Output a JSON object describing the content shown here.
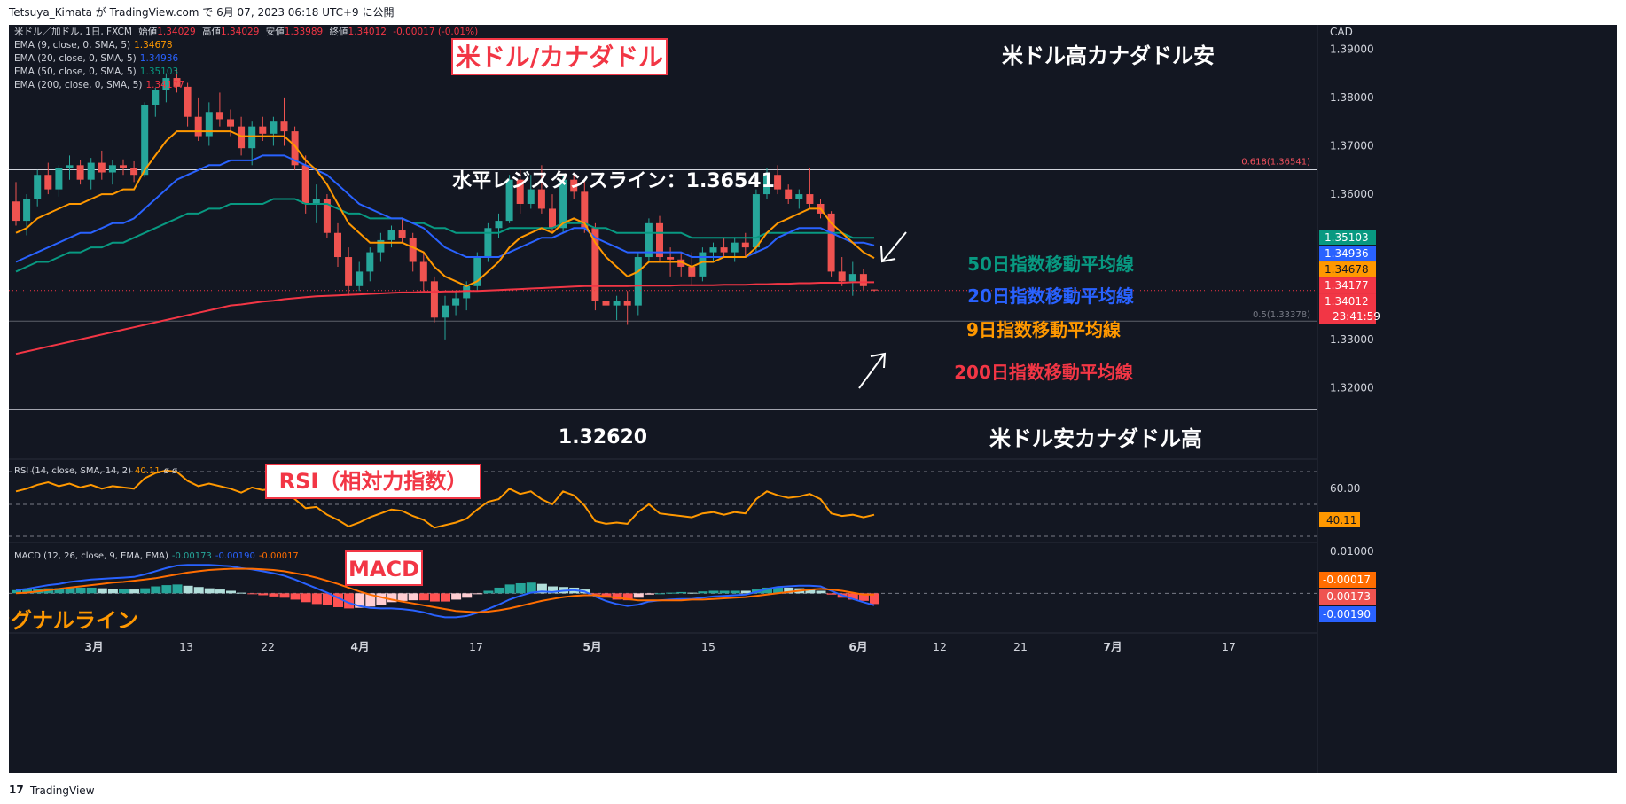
{
  "header": {
    "text": "Tetsuya_Kimata が TradingView.com で 6月 07, 2023 06:18 UTC+9 に公開"
  },
  "footer": {
    "brand": "TradingView",
    "logo": "17"
  },
  "colors": {
    "bg": "#131722",
    "up": "#26a69a",
    "down": "#ef5350",
    "ema9": "#ff9800",
    "ema20": "#2962ff",
    "ema50": "#089981",
    "ema200": "#f23645",
    "text": "#d1d4dc"
  },
  "legend": {
    "symbol_line": "米ドル／加ドル, 1日, FXCM",
    "ohlc": [
      {
        "label": "始値",
        "value": "1.34029"
      },
      {
        "label": "高値",
        "value": "1.34029"
      },
      {
        "label": "安値",
        "value": "1.33989"
      },
      {
        "label": "終値",
        "value": "1.34012"
      }
    ],
    "change": "-0.00017 (-0.01%)",
    "emas": [
      {
        "label": "EMA (9, close, 0, SMA, 5)",
        "value": "1.34678",
        "color": "#ff9800"
      },
      {
        "label": "EMA (20, close, 0, SMA, 5)",
        "value": "1.34936",
        "color": "#2962ff"
      },
      {
        "label": "EMA (50, close, 0, SMA, 5)",
        "value": "1.35103",
        "color": "#089981"
      },
      {
        "label": "EMA (200, close, 0, SMA, 5)",
        "value": "1.34177",
        "color": "#f23645"
      }
    ]
  },
  "annotations": {
    "title": "米ドル/カナダドル",
    "top_right": "米ドル高カナダドル安",
    "resistance": "水平レジスタンスライン：1.36541",
    "support_value": "1.32620",
    "bottom_right": "米ドル安カナダドル高",
    "ema50_label": "50日指数移動平均線",
    "ema20_label": "20日指数移動平均線",
    "ema9_label": "9日指数移動平均線",
    "ema200_label": "200日指数移動平均線",
    "rsi_title": "RSI（相対力指数）",
    "macd_title": "MACD",
    "signal_label": "シグナルライン",
    "fib_618": "0.618(1.36541)",
    "fib_05": "0.5(1.33378)"
  },
  "price_axis": {
    "currency": "CAD",
    "ticks": [
      "1.39000",
      "1.38000",
      "1.37000",
      "1.36000",
      "1.32000"
    ],
    "tick_values": [
      1.39,
      1.38,
      1.37,
      1.36,
      1.32
    ],
    "badges": [
      {
        "text": "1.35103",
        "color": "#089981",
        "value": 1.35103
      },
      {
        "text": "1.34936",
        "color": "#2962ff",
        "value": 1.34936
      },
      {
        "text": "1.34678",
        "color": "#ff9800",
        "value": 1.34678
      },
      {
        "text": "1.34177",
        "color": "#f23645",
        "value": 1.34177
      },
      {
        "text": "1.34012",
        "color": "#f23645",
        "value": 1.34012
      }
    ],
    "countdown": "23:41:59",
    "tick_133": "1.33000",
    "tick_134": "1.34000",
    "tick_135": "1.35000"
  },
  "rsi": {
    "legend": "RSI (14, close, SMA, 14, 2)",
    "value": "40.11",
    "extra": "ø ø",
    "axis_label": "60.00"
  },
  "macd": {
    "legend": "MACD (12, 26, close, 9, EMA, EMA)",
    "values": [
      "-0.00173",
      "-0.00190",
      "-0.00017"
    ],
    "axis_top": "0.01000",
    "badges": [
      {
        "text": "-0.00017",
        "color": "#ff6d00"
      },
      {
        "text": "-0.00173",
        "color": "#ef5350"
      },
      {
        "text": "-0.00190",
        "color": "#2962ff"
      }
    ]
  },
  "time_axis": [
    {
      "label": "3月",
      "x": 0.0,
      "bold": true
    },
    {
      "label": "13",
      "x": 0.0
    },
    {
      "label": "22",
      "x": 0.0
    },
    {
      "label": "4月",
      "x": 0.0,
      "bold": true
    },
    {
      "label": "17",
      "x": 0.0
    },
    {
      "label": "5月",
      "x": 0.0,
      "bold": true
    },
    {
      "label": "15",
      "x": 0.0
    },
    {
      "label": "6月",
      "x": 0.0,
      "bold": true
    },
    {
      "label": "12",
      "x": 0.0
    },
    {
      "label": "21",
      "x": 0.0
    },
    {
      "label": "7月",
      "x": 0.0,
      "bold": true
    },
    {
      "label": "17",
      "x": 0.0
    }
  ],
  "chart_data": {
    "type": "candlestick",
    "title": "米ドル/カナダドル",
    "symbol": "USDCAD 1D FXCM",
    "ylim": [
      1.3155,
      1.395
    ],
    "resistance": 1.36541,
    "fib_05": 1.33378,
    "support": 1.3262,
    "candles": [
      [
        1.3585,
        1.3625,
        1.3535,
        1.3545
      ],
      [
        1.3545,
        1.36,
        1.3515,
        1.359
      ],
      [
        1.359,
        1.365,
        1.3575,
        1.364
      ],
      [
        1.364,
        1.3665,
        1.36,
        1.361
      ],
      [
        1.361,
        1.366,
        1.3595,
        1.3655
      ],
      [
        1.3655,
        1.368,
        1.363,
        1.366
      ],
      [
        1.366,
        1.367,
        1.362,
        1.363
      ],
      [
        1.363,
        1.3675,
        1.361,
        1.3665
      ],
      [
        1.3665,
        1.369,
        1.363,
        1.3645
      ],
      [
        1.3645,
        1.367,
        1.362,
        1.366
      ],
      [
        1.366,
        1.3672,
        1.364,
        1.3655
      ],
      [
        1.3655,
        1.3668,
        1.3625,
        1.364
      ],
      [
        1.364,
        1.379,
        1.3635,
        1.3785
      ],
      [
        1.3785,
        1.382,
        1.376,
        1.3815
      ],
      [
        1.3815,
        1.385,
        1.379,
        1.384
      ],
      [
        1.384,
        1.386,
        1.381,
        1.3822
      ],
      [
        1.3822,
        1.383,
        1.374,
        1.376
      ],
      [
        1.376,
        1.38,
        1.371,
        1.372
      ],
      [
        1.372,
        1.379,
        1.37,
        1.377
      ],
      [
        1.377,
        1.381,
        1.374,
        1.3755
      ],
      [
        1.3755,
        1.3775,
        1.372,
        1.374
      ],
      [
        1.374,
        1.376,
        1.368,
        1.3695
      ],
      [
        1.3695,
        1.375,
        1.366,
        1.374
      ],
      [
        1.374,
        1.376,
        1.371,
        1.3725
      ],
      [
        1.3725,
        1.376,
        1.37,
        1.375
      ],
      [
        1.375,
        1.38,
        1.37,
        1.373
      ],
      [
        1.373,
        1.374,
        1.365,
        1.366
      ],
      [
        1.366,
        1.368,
        1.356,
        1.358
      ],
      [
        1.358,
        1.362,
        1.354,
        1.359
      ],
      [
        1.359,
        1.36,
        1.351,
        1.352
      ],
      [
        1.352,
        1.354,
        1.345,
        1.347
      ],
      [
        1.347,
        1.349,
        1.339,
        1.341
      ],
      [
        1.341,
        1.346,
        1.34,
        1.344
      ],
      [
        1.344,
        1.349,
        1.342,
        1.348
      ],
      [
        1.348,
        1.352,
        1.346,
        1.3505
      ],
      [
        1.3505,
        1.3535,
        1.349,
        1.3525
      ],
      [
        1.3525,
        1.355,
        1.35,
        1.351
      ],
      [
        1.351,
        1.352,
        1.344,
        1.346
      ],
      [
        1.346,
        1.348,
        1.34,
        1.342
      ],
      [
        1.342,
        1.343,
        1.3335,
        1.3345
      ],
      [
        1.3345,
        1.339,
        1.33,
        1.337
      ],
      [
        1.337,
        1.34,
        1.335,
        1.3385
      ],
      [
        1.3385,
        1.342,
        1.336,
        1.341
      ],
      [
        1.341,
        1.348,
        1.34,
        1.347
      ],
      [
        1.347,
        1.354,
        1.346,
        1.353
      ],
      [
        1.353,
        1.356,
        1.351,
        1.3545
      ],
      [
        1.3545,
        1.364,
        1.354,
        1.363
      ],
      [
        1.363,
        1.365,
        1.356,
        1.358
      ],
      [
        1.358,
        1.364,
        1.357,
        1.361
      ],
      [
        1.361,
        1.366,
        1.356,
        1.357
      ],
      [
        1.357,
        1.36,
        1.352,
        1.353
      ],
      [
        1.353,
        1.364,
        1.352,
        1.363
      ],
      [
        1.363,
        1.3645,
        1.359,
        1.3605
      ],
      [
        1.3605,
        1.363,
        1.352,
        1.353
      ],
      [
        1.353,
        1.354,
        1.336,
        1.338
      ],
      [
        1.338,
        1.34,
        1.332,
        1.337
      ],
      [
        1.337,
        1.339,
        1.334,
        1.338
      ],
      [
        1.338,
        1.34,
        1.333,
        1.337
      ],
      [
        1.337,
        1.348,
        1.335,
        1.347
      ],
      [
        1.347,
        1.355,
        1.346,
        1.354
      ],
      [
        1.354,
        1.3555,
        1.346,
        1.347
      ],
      [
        1.347,
        1.349,
        1.343,
        1.3465
      ],
      [
        1.3465,
        1.348,
        1.343,
        1.345
      ],
      [
        1.345,
        1.348,
        1.341,
        1.343
      ],
      [
        1.343,
        1.349,
        1.342,
        1.348
      ],
      [
        1.348,
        1.35,
        1.346,
        1.349
      ],
      [
        1.349,
        1.351,
        1.347,
        1.348
      ],
      [
        1.348,
        1.351,
        1.346,
        1.35
      ],
      [
        1.35,
        1.352,
        1.347,
        1.349
      ],
      [
        1.349,
        1.361,
        1.348,
        1.36
      ],
      [
        1.36,
        1.3655,
        1.359,
        1.364
      ],
      [
        1.364,
        1.366,
        1.36,
        1.361
      ],
      [
        1.361,
        1.362,
        1.358,
        1.359
      ],
      [
        1.359,
        1.361,
        1.357,
        1.36
      ],
      [
        1.36,
        1.3655,
        1.357,
        1.358
      ],
      [
        1.358,
        1.359,
        1.355,
        1.356
      ],
      [
        1.356,
        1.3565,
        1.343,
        1.344
      ],
      [
        1.344,
        1.347,
        1.341,
        1.342
      ],
      [
        1.342,
        1.346,
        1.339,
        1.3435
      ],
      [
        1.3435,
        1.3445,
        1.34,
        1.341
      ],
      [
        1.3403,
        1.3403,
        1.3399,
        1.3401
      ]
    ],
    "ema9": [
      1.352,
      1.353,
      1.355,
      1.356,
      1.357,
      1.358,
      1.358,
      1.359,
      1.36,
      1.36,
      1.361,
      1.361,
      1.365,
      1.368,
      1.371,
      1.373,
      1.373,
      1.373,
      1.373,
      1.373,
      1.373,
      1.372,
      1.372,
      1.372,
      1.372,
      1.372,
      1.37,
      1.367,
      1.365,
      1.362,
      1.358,
      1.354,
      1.352,
      1.35,
      1.35,
      1.35,
      1.35,
      1.349,
      1.348,
      1.345,
      1.343,
      1.342,
      1.341,
      1.342,
      1.344,
      1.346,
      1.349,
      1.351,
      1.352,
      1.353,
      1.352,
      1.354,
      1.355,
      1.354,
      1.35,
      1.347,
      1.345,
      1.343,
      1.344,
      1.346,
      1.346,
      1.346,
      1.346,
      1.345,
      1.346,
      1.346,
      1.347,
      1.347,
      1.347,
      1.349,
      1.352,
      1.354,
      1.355,
      1.356,
      1.357,
      1.357,
      1.354,
      1.352,
      1.35,
      1.348,
      1.3468
    ],
    "ema20": [
      1.346,
      1.347,
      1.348,
      1.349,
      1.35,
      1.351,
      1.352,
      1.352,
      1.353,
      1.354,
      1.354,
      1.355,
      1.357,
      1.359,
      1.361,
      1.363,
      1.364,
      1.365,
      1.366,
      1.366,
      1.367,
      1.367,
      1.367,
      1.368,
      1.368,
      1.368,
      1.367,
      1.366,
      1.365,
      1.364,
      1.362,
      1.36,
      1.358,
      1.357,
      1.356,
      1.355,
      1.355,
      1.354,
      1.353,
      1.351,
      1.349,
      1.348,
      1.347,
      1.347,
      1.347,
      1.347,
      1.348,
      1.349,
      1.35,
      1.351,
      1.351,
      1.352,
      1.353,
      1.353,
      1.351,
      1.35,
      1.349,
      1.348,
      1.348,
      1.348,
      1.348,
      1.348,
      1.348,
      1.347,
      1.347,
      1.347,
      1.347,
      1.347,
      1.347,
      1.348,
      1.349,
      1.351,
      1.352,
      1.353,
      1.353,
      1.353,
      1.352,
      1.351,
      1.35,
      1.35,
      1.3494
    ],
    "ema50": [
      1.344,
      1.345,
      1.346,
      1.346,
      1.347,
      1.348,
      1.348,
      1.349,
      1.349,
      1.35,
      1.35,
      1.351,
      1.352,
      1.353,
      1.354,
      1.355,
      1.356,
      1.356,
      1.357,
      1.357,
      1.358,
      1.358,
      1.358,
      1.358,
      1.359,
      1.359,
      1.359,
      1.358,
      1.358,
      1.358,
      1.357,
      1.356,
      1.356,
      1.355,
      1.355,
      1.355,
      1.355,
      1.354,
      1.354,
      1.353,
      1.353,
      1.352,
      1.352,
      1.352,
      1.352,
      1.352,
      1.353,
      1.353,
      1.353,
      1.353,
      1.353,
      1.354,
      1.354,
      1.354,
      1.353,
      1.353,
      1.352,
      1.352,
      1.352,
      1.352,
      1.352,
      1.352,
      1.352,
      1.351,
      1.351,
      1.351,
      1.351,
      1.351,
      1.351,
      1.351,
      1.352,
      1.352,
      1.352,
      1.352,
      1.352,
      1.352,
      1.352,
      1.352,
      1.351,
      1.351,
      1.351
    ],
    "ema200": [
      1.327,
      1.3275,
      1.328,
      1.3285,
      1.329,
      1.3295,
      1.33,
      1.3305,
      1.331,
      1.3315,
      1.332,
      1.3325,
      1.333,
      1.3335,
      1.334,
      1.3345,
      1.335,
      1.3355,
      1.336,
      1.3365,
      1.337,
      1.3372,
      1.3375,
      1.3378,
      1.338,
      1.3383,
      1.3385,
      1.3387,
      1.3389,
      1.339,
      1.3391,
      1.3392,
      1.3393,
      1.3394,
      1.3395,
      1.3396,
      1.3397,
      1.3397,
      1.3398,
      1.3398,
      1.3399,
      1.3399,
      1.34,
      1.34,
      1.3401,
      1.3402,
      1.3403,
      1.3404,
      1.3405,
      1.3406,
      1.3407,
      1.3408,
      1.3409,
      1.341,
      1.341,
      1.341,
      1.341,
      1.341,
      1.3411,
      1.3411,
      1.3411,
      1.3411,
      1.3412,
      1.3412,
      1.3412,
      1.3412,
      1.3413,
      1.3413,
      1.3413,
      1.3414,
      1.3414,
      1.3415,
      1.3415,
      1.3416,
      1.3416,
      1.3417,
      1.3417,
      1.3417,
      1.3418,
      1.3418,
      1.3418
    ],
    "rsi": [
      58,
      60,
      63,
      65,
      62,
      64,
      61,
      63,
      60,
      62,
      61,
      60,
      68,
      72,
      74,
      73,
      66,
      62,
      64,
      62,
      60,
      57,
      61,
      59,
      60,
      58,
      52,
      45,
      46,
      40,
      36,
      31,
      34,
      38,
      41,
      44,
      43,
      39,
      36,
      30,
      32,
      34,
      37,
      44,
      50,
      52,
      60,
      56,
      58,
      52,
      48,
      58,
      55,
      47,
      35,
      33,
      34,
      33,
      42,
      48,
      41,
      40,
      39,
      38,
      41,
      42,
      40,
      42,
      41,
      52,
      58,
      55,
      53,
      54,
      56,
      52,
      41,
      39,
      40,
      38,
      40
    ],
    "rsi_ylim": [
      20,
      80
    ],
    "macd": [
      0.0005,
      0.0007,
      0.001,
      0.0013,
      0.0015,
      0.0018,
      0.002,
      0.0022,
      0.0023,
      0.0024,
      0.0025,
      0.0026,
      0.003,
      0.0035,
      0.004,
      0.0044,
      0.0045,
      0.0045,
      0.0045,
      0.0044,
      0.0043,
      0.004,
      0.0038,
      0.0035,
      0.0032,
      0.0028,
      0.0022,
      0.0015,
      0.0008,
      0.0001,
      -0.0007,
      -0.0015,
      -0.002,
      -0.0023,
      -0.0024,
      -0.0024,
      -0.0025,
      -0.0027,
      -0.003,
      -0.0035,
      -0.0038,
      -0.0038,
      -0.0036,
      -0.0031,
      -0.0025,
      -0.0018,
      -0.001,
      -0.0004,
      0.0001,
      0.0003,
      0.0002,
      0.0004,
      0.0005,
      0.0003,
      -0.0005,
      -0.0012,
      -0.0017,
      -0.002,
      -0.0018,
      -0.0013,
      -0.0011,
      -0.001,
      -0.0009,
      -0.0009,
      -0.0007,
      -0.0005,
      -0.0004,
      -0.0003,
      -0.0002,
      0.0002,
      0.0007,
      0.001,
      0.0011,
      0.0012,
      0.0012,
      0.0011,
      0.0004,
      -0.0003,
      -0.0009,
      -0.0014,
      -0.0019
    ],
    "signal": [
      0.0,
      0.0001,
      0.0003,
      0.0005,
      0.0007,
      0.0009,
      0.0011,
      0.0013,
      0.0015,
      0.0017,
      0.0018,
      0.002,
      0.0022,
      0.0024,
      0.0027,
      0.003,
      0.0033,
      0.0035,
      0.0037,
      0.0038,
      0.0039,
      0.0039,
      0.0039,
      0.0038,
      0.0037,
      0.0035,
      0.0032,
      0.0029,
      0.0025,
      0.002,
      0.0015,
      0.0009,
      0.0003,
      -0.0002,
      -0.0006,
      -0.001,
      -0.0013,
      -0.0016,
      -0.0019,
      -0.0022,
      -0.0025,
      -0.0028,
      -0.0029,
      -0.003,
      -0.0029,
      -0.0027,
      -0.0024,
      -0.002,
      -0.0016,
      -0.0012,
      -0.0009,
      -0.0006,
      -0.0004,
      -0.0003,
      -0.0003,
      -0.0005,
      -0.0007,
      -0.0009,
      -0.0011,
      -0.0011,
      -0.0011,
      -0.0011,
      -0.0011,
      -0.001,
      -0.001,
      -0.0009,
      -0.0008,
      -0.0007,
      -0.0006,
      -0.0004,
      -0.0002,
      0.0,
      0.0002,
      0.0004,
      0.0006,
      0.0007,
      0.0006,
      0.0004,
      0.0001,
      -0.0002,
      -0.0002
    ],
    "macd_ylim": [
      -0.006,
      0.0075
    ]
  }
}
